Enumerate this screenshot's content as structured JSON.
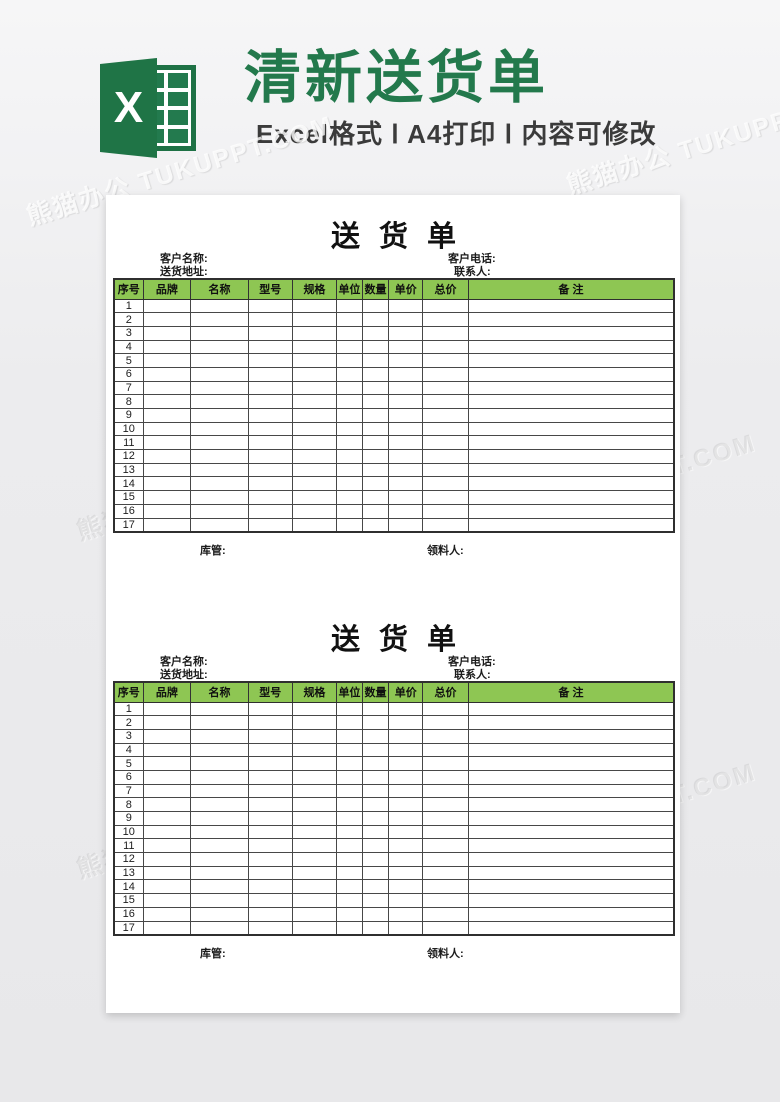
{
  "banner": {
    "excel_letter": "X",
    "title": "清新送货单",
    "subtitle": "Excel格式 Ⅰ A4打印 Ⅰ 内容可修改"
  },
  "watermark": {
    "text": "熊猫办公 TUKUPPT.COM"
  },
  "delivery_note": {
    "title": "送 货 单",
    "meta": {
      "customer_name_label": "客户名称:",
      "delivery_address_label": "送货地址:",
      "customer_phone_label": "客户电话:",
      "contact_person_label": "联系人:"
    },
    "columns": [
      "序号",
      "品牌",
      "名称",
      "型号",
      "规格",
      "单位",
      "数量",
      "单价",
      "总价",
      "备 注"
    ],
    "row_numbers": [
      1,
      2,
      3,
      4,
      5,
      6,
      7,
      8,
      9,
      10,
      11,
      12,
      13,
      14,
      15,
      16,
      17
    ],
    "footer": {
      "warehouse_keeper_label": "库管:",
      "receiver_label": "领料人:"
    }
  },
  "colors": {
    "excel_green": "#1e7145",
    "banner_title_green": "#23794c",
    "table_header_green": "#8ec653",
    "page_background": "#ffffff",
    "canvas_background": "#ececee"
  }
}
